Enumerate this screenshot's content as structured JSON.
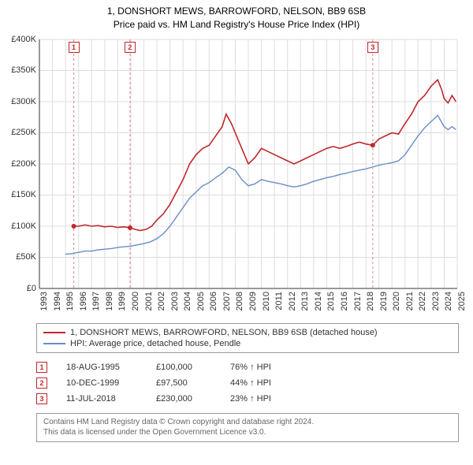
{
  "title_line1": "1, DONSHORT MEWS, BARROWFORD, NELSON, BB9 6SB",
  "title_line2": "Price paid vs. HM Land Registry's House Price Index (HPI)",
  "chart": {
    "type": "line",
    "background_color": "#ffffff",
    "grid_color": "#dddddd",
    "axis_color": "#333333",
    "label_fontsize": 11,
    "title_fontsize": 12,
    "x": {
      "min": 1993,
      "max": 2025,
      "ticks": [
        1993,
        1994,
        1995,
        1996,
        1997,
        1998,
        1999,
        2000,
        2001,
        2002,
        2003,
        2004,
        2005,
        2006,
        2007,
        2008,
        2009,
        2010,
        2011,
        2012,
        2013,
        2014,
        2015,
        2016,
        2017,
        2018,
        2019,
        2020,
        2021,
        2022,
        2023,
        2024,
        2025
      ]
    },
    "y": {
      "min": 0,
      "max": 400000,
      "ticks": [
        "£0",
        "£50K",
        "£100K",
        "£150K",
        "£200K",
        "£250K",
        "£300K",
        "£350K",
        "£400K"
      ],
      "tick_values": [
        0,
        50000,
        100000,
        150000,
        200000,
        250000,
        300000,
        350000,
        400000
      ]
    },
    "series": [
      {
        "name": "property",
        "color": "#c1272d",
        "line_width": 1.6,
        "points": [
          [
            1995.63,
            100000
          ],
          [
            1996.0,
            100000
          ],
          [
            1996.5,
            102000
          ],
          [
            1997.0,
            100000
          ],
          [
            1997.5,
            101000
          ],
          [
            1998.0,
            99000
          ],
          [
            1998.5,
            100000
          ],
          [
            1999.0,
            98000
          ],
          [
            1999.5,
            99000
          ],
          [
            1999.94,
            97500
          ],
          [
            2000.3,
            95000
          ],
          [
            2000.7,
            93000
          ],
          [
            2001.2,
            95000
          ],
          [
            2001.6,
            100000
          ],
          [
            2002.0,
            110000
          ],
          [
            2002.5,
            120000
          ],
          [
            2003.0,
            135000
          ],
          [
            2003.5,
            155000
          ],
          [
            2004.0,
            175000
          ],
          [
            2004.5,
            200000
          ],
          [
            2005.0,
            215000
          ],
          [
            2005.5,
            225000
          ],
          [
            2006.0,
            230000
          ],
          [
            2006.5,
            245000
          ],
          [
            2007.0,
            260000
          ],
          [
            2007.3,
            280000
          ],
          [
            2007.7,
            265000
          ],
          [
            2008.0,
            250000
          ],
          [
            2008.5,
            225000
          ],
          [
            2009.0,
            200000
          ],
          [
            2009.5,
            210000
          ],
          [
            2010.0,
            225000
          ],
          [
            2010.5,
            220000
          ],
          [
            2011.0,
            215000
          ],
          [
            2011.5,
            210000
          ],
          [
            2012.0,
            205000
          ],
          [
            2012.5,
            200000
          ],
          [
            2013.0,
            205000
          ],
          [
            2013.5,
            210000
          ],
          [
            2014.0,
            215000
          ],
          [
            2014.5,
            220000
          ],
          [
            2015.0,
            225000
          ],
          [
            2015.5,
            228000
          ],
          [
            2016.0,
            225000
          ],
          [
            2016.5,
            228000
          ],
          [
            2017.0,
            232000
          ],
          [
            2017.5,
            235000
          ],
          [
            2018.0,
            232000
          ],
          [
            2018.53,
            230000
          ],
          [
            2019.0,
            240000
          ],
          [
            2019.5,
            245000
          ],
          [
            2020.0,
            250000
          ],
          [
            2020.5,
            248000
          ],
          [
            2021.0,
            265000
          ],
          [
            2021.5,
            280000
          ],
          [
            2022.0,
            300000
          ],
          [
            2022.5,
            310000
          ],
          [
            2023.0,
            325000
          ],
          [
            2023.5,
            335000
          ],
          [
            2023.8,
            320000
          ],
          [
            2024.0,
            305000
          ],
          [
            2024.3,
            298000
          ],
          [
            2024.6,
            310000
          ],
          [
            2024.9,
            300000
          ]
        ]
      },
      {
        "name": "hpi",
        "color": "#6a8cc7",
        "line_width": 1.4,
        "points": [
          [
            1995.0,
            55000
          ],
          [
            1995.5,
            56000
          ],
          [
            1996.0,
            58000
          ],
          [
            1996.5,
            60000
          ],
          [
            1997.0,
            60000
          ],
          [
            1997.5,
            62000
          ],
          [
            1998.0,
            63000
          ],
          [
            1998.5,
            64000
          ],
          [
            1999.0,
            66000
          ],
          [
            1999.5,
            67000
          ],
          [
            2000.0,
            68000
          ],
          [
            2000.5,
            70000
          ],
          [
            2001.0,
            72000
          ],
          [
            2001.5,
            75000
          ],
          [
            2002.0,
            80000
          ],
          [
            2002.5,
            88000
          ],
          [
            2003.0,
            100000
          ],
          [
            2003.5,
            115000
          ],
          [
            2004.0,
            130000
          ],
          [
            2004.5,
            145000
          ],
          [
            2005.0,
            155000
          ],
          [
            2005.5,
            165000
          ],
          [
            2006.0,
            170000
          ],
          [
            2006.5,
            178000
          ],
          [
            2007.0,
            185000
          ],
          [
            2007.5,
            195000
          ],
          [
            2008.0,
            190000
          ],
          [
            2008.5,
            175000
          ],
          [
            2009.0,
            165000
          ],
          [
            2009.5,
            168000
          ],
          [
            2010.0,
            175000
          ],
          [
            2010.5,
            172000
          ],
          [
            2011.0,
            170000
          ],
          [
            2011.5,
            168000
          ],
          [
            2012.0,
            165000
          ],
          [
            2012.5,
            163000
          ],
          [
            2013.0,
            165000
          ],
          [
            2013.5,
            168000
          ],
          [
            2014.0,
            172000
          ],
          [
            2014.5,
            175000
          ],
          [
            2015.0,
            178000
          ],
          [
            2015.5,
            180000
          ],
          [
            2016.0,
            183000
          ],
          [
            2016.5,
            185000
          ],
          [
            2017.0,
            188000
          ],
          [
            2017.5,
            190000
          ],
          [
            2018.0,
            192000
          ],
          [
            2018.5,
            195000
          ],
          [
            2019.0,
            198000
          ],
          [
            2019.5,
            200000
          ],
          [
            2020.0,
            202000
          ],
          [
            2020.5,
            205000
          ],
          [
            2021.0,
            215000
          ],
          [
            2021.5,
            230000
          ],
          [
            2022.0,
            245000
          ],
          [
            2022.5,
            258000
          ],
          [
            2023.0,
            268000
          ],
          [
            2023.5,
            278000
          ],
          [
            2024.0,
            260000
          ],
          [
            2024.3,
            255000
          ],
          [
            2024.6,
            260000
          ],
          [
            2024.9,
            255000
          ]
        ]
      }
    ],
    "sale_markers": [
      {
        "n": "1",
        "x": 1995.63,
        "y": 100000,
        "color": "#c1272d"
      },
      {
        "n": "2",
        "x": 1999.94,
        "y": 97500,
        "color": "#c1272d"
      },
      {
        "n": "3",
        "x": 2018.53,
        "y": 230000,
        "color": "#c1272d"
      }
    ],
    "marker_vline_color": "#d88",
    "sale_dot_radius": 3
  },
  "legend": {
    "items": [
      {
        "color": "#c1272d",
        "label": "1, DONSHORT MEWS, BARROWFORD, NELSON, BB9 6SB (detached house)"
      },
      {
        "color": "#6a8cc7",
        "label": "HPI: Average price, detached house, Pendle"
      }
    ]
  },
  "sales": [
    {
      "n": "1",
      "date": "18-AUG-1995",
      "price": "£100,000",
      "hpi": "76% ↑ HPI",
      "color": "#c1272d"
    },
    {
      "n": "2",
      "date": "10-DEC-1999",
      "price": "£97,500",
      "hpi": "44% ↑ HPI",
      "color": "#c1272d"
    },
    {
      "n": "3",
      "date": "11-JUL-2018",
      "price": "£230,000",
      "hpi": "23% ↑ HPI",
      "color": "#c1272d"
    }
  ],
  "attribution_line1": "Contains HM Land Registry data © Crown copyright and database right 2024.",
  "attribution_line2": "This data is licensed under the Open Government Licence v3.0."
}
